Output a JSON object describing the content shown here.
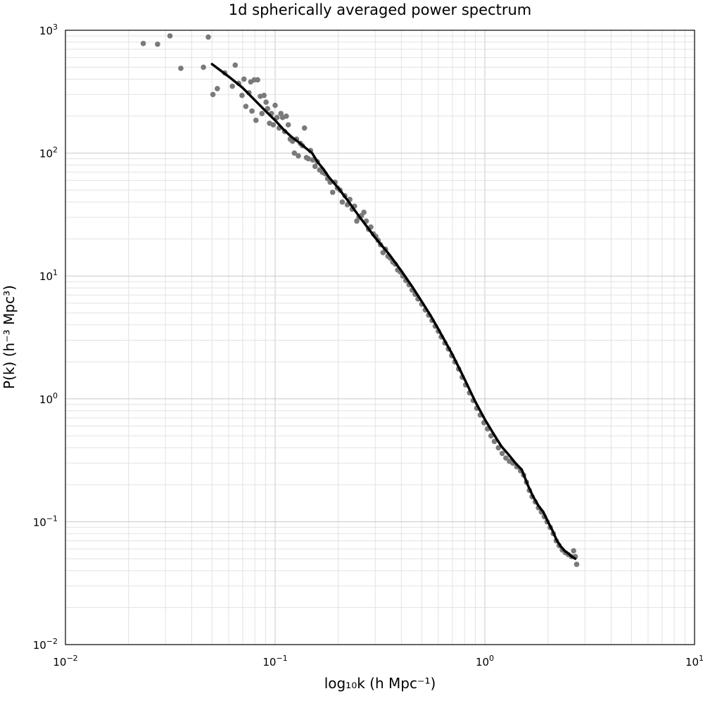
{
  "chart_data": {
    "type": "scatter",
    "title": "1d spherically averaged power spectrum",
    "xlabel": "log₁₀k (h Mpc⁻¹)",
    "ylabel": "P(k) (h⁻³ Mpc³)",
    "xscale": "log",
    "yscale": "log",
    "xlim": [
      0.01,
      10
    ],
    "ylim": [
      0.01,
      1000
    ],
    "grid": true,
    "x_ticks": [
      {
        "base": "10",
        "exp": "−2"
      },
      {
        "base": "10",
        "exp": "−1"
      },
      {
        "base": "10",
        "exp": "0"
      },
      {
        "base": "10",
        "exp": "1"
      }
    ],
    "y_ticks": [
      {
        "base": "10",
        "exp": "−2"
      },
      {
        "base": "10",
        "exp": "−1"
      },
      {
        "base": "10",
        "exp": "0"
      },
      {
        "base": "10",
        "exp": "1"
      },
      {
        "base": "10",
        "exp": "2"
      },
      {
        "base": "10",
        "exp": "3"
      }
    ],
    "series": [
      {
        "kind": "scatter",
        "color": "#7a7a7a",
        "points": [
          [
            0.0235,
            780
          ],
          [
            0.0275,
            770
          ],
          [
            0.0315,
            900
          ],
          [
            0.0355,
            490
          ],
          [
            0.0455,
            500
          ],
          [
            0.048,
            880
          ],
          [
            0.0505,
            300
          ],
          [
            0.053,
            335
          ],
          [
            0.0575,
            450
          ],
          [
            0.0625,
            350
          ],
          [
            0.0645,
            520
          ],
          [
            0.067,
            370
          ],
          [
            0.0695,
            295
          ],
          [
            0.071,
            400
          ],
          [
            0.0725,
            240
          ],
          [
            0.075,
            310
          ],
          [
            0.0765,
            380
          ],
          [
            0.0775,
            220
          ],
          [
            0.0795,
            395
          ],
          [
            0.081,
            185
          ],
          [
            0.0825,
            395
          ],
          [
            0.085,
            290
          ],
          [
            0.0865,
            210
          ],
          [
            0.0885,
            295
          ],
          [
            0.0905,
            260
          ],
          [
            0.092,
            230
          ],
          [
            0.094,
            175
          ],
          [
            0.096,
            210
          ],
          [
            0.098,
            170
          ],
          [
            0.1,
            245
          ],
          [
            0.102,
            195
          ],
          [
            0.1045,
            160
          ],
          [
            0.1065,
            210
          ],
          [
            0.1085,
            195
          ],
          [
            0.111,
            150
          ],
          [
            0.113,
            200
          ],
          [
            0.1155,
            170
          ],
          [
            0.118,
            130
          ],
          [
            0.121,
            125
          ],
          [
            0.1235,
            100
          ],
          [
            0.1265,
            130
          ],
          [
            0.129,
            95
          ],
          [
            0.132,
            120
          ],
          [
            0.135,
            115
          ],
          [
            0.138,
            160
          ],
          [
            0.141,
            92
          ],
          [
            0.144,
            90
          ],
          [
            0.1475,
            105
          ],
          [
            0.151,
            88
          ],
          [
            0.155,
            78
          ],
          [
            0.159,
            85
          ],
          [
            0.163,
            73
          ],
          [
            0.168,
            70
          ],
          [
            0.173,
            68
          ],
          [
            0.178,
            62
          ],
          [
            0.183,
            58
          ],
          [
            0.188,
            48
          ],
          [
            0.193,
            58
          ],
          [
            0.198,
            52
          ],
          [
            0.204,
            50
          ],
          [
            0.209,
            40
          ],
          [
            0.215,
            45
          ],
          [
            0.221,
            38
          ],
          [
            0.227,
            42
          ],
          [
            0.233,
            35
          ],
          [
            0.239,
            37
          ],
          [
            0.245,
            28
          ],
          [
            0.251,
            30
          ],
          [
            0.258,
            31
          ],
          [
            0.265,
            33
          ],
          [
            0.272,
            28
          ],
          [
            0.279,
            24
          ],
          [
            0.286,
            25
          ],
          [
            0.294,
            22
          ],
          [
            0.302,
            21
          ],
          [
            0.31,
            19.5
          ],
          [
            0.318,
            18
          ],
          [
            0.327,
            15.5
          ],
          [
            0.336,
            16.5
          ],
          [
            0.345,
            14.5
          ],
          [
            0.354,
            14
          ],
          [
            0.364,
            13
          ],
          [
            0.374,
            12.5
          ],
          [
            0.384,
            11.2
          ],
          [
            0.395,
            10.8
          ],
          [
            0.406,
            10
          ],
          [
            0.42,
            9.2
          ],
          [
            0.435,
            8.5
          ],
          [
            0.45,
            7.7
          ],
          [
            0.465,
            7.1
          ],
          [
            0.48,
            6.5
          ],
          [
            0.5,
            5.9
          ],
          [
            0.52,
            5.3
          ],
          [
            0.54,
            4.8
          ],
          [
            0.56,
            4.35
          ],
          [
            0.58,
            3.9
          ],
          [
            0.6,
            3.55
          ],
          [
            0.62,
            3.2
          ],
          [
            0.645,
            2.85
          ],
          [
            0.67,
            2.55
          ],
          [
            0.695,
            2.25
          ],
          [
            0.72,
            2.0
          ],
          [
            0.75,
            1.75
          ],
          [
            0.78,
            1.5
          ],
          [
            0.81,
            1.3
          ],
          [
            0.845,
            1.12
          ],
          [
            0.88,
            0.97
          ],
          [
            0.915,
            0.84
          ],
          [
            0.95,
            0.74
          ],
          [
            0.99,
            0.64
          ],
          [
            1.03,
            0.57
          ],
          [
            1.07,
            0.5
          ],
          [
            1.11,
            0.45
          ],
          [
            1.16,
            0.4
          ],
          [
            1.21,
            0.36
          ],
          [
            1.26,
            0.33
          ],
          [
            1.31,
            0.31
          ],
          [
            1.36,
            0.3
          ],
          [
            1.42,
            0.28
          ],
          [
            1.48,
            0.26
          ],
          [
            1.53,
            0.24
          ],
          [
            1.58,
            0.21
          ],
          [
            1.63,
            0.18
          ],
          [
            1.68,
            0.16
          ],
          [
            1.74,
            0.145
          ],
          [
            1.8,
            0.13
          ],
          [
            1.86,
            0.12
          ],
          [
            1.92,
            0.11
          ],
          [
            1.98,
            0.1
          ],
          [
            2.05,
            0.09
          ],
          [
            2.12,
            0.08
          ],
          [
            2.19,
            0.07
          ],
          [
            2.26,
            0.064
          ],
          [
            2.34,
            0.059
          ],
          [
            2.42,
            0.056
          ],
          [
            2.5,
            0.054
          ],
          [
            2.59,
            0.052
          ],
          [
            2.65,
            0.058
          ],
          [
            2.7,
            0.052
          ],
          [
            2.74,
            0.045
          ]
        ]
      },
      {
        "kind": "line",
        "color": "#000000",
        "points": [
          [
            0.05,
            530
          ],
          [
            0.06,
            420
          ],
          [
            0.07,
            340
          ],
          [
            0.08,
            270
          ],
          [
            0.09,
            220
          ],
          [
            0.1,
            185
          ],
          [
            0.11,
            155
          ],
          [
            0.12,
            135
          ],
          [
            0.13,
            122
          ],
          [
            0.14,
            110
          ],
          [
            0.15,
            100
          ],
          [
            0.16,
            84
          ],
          [
            0.17,
            74
          ],
          [
            0.18,
            64
          ],
          [
            0.2,
            52
          ],
          [
            0.22,
            42
          ],
          [
            0.25,
            31
          ],
          [
            0.28,
            24
          ],
          [
            0.3,
            20.5
          ],
          [
            0.35,
            15
          ],
          [
            0.4,
            11
          ],
          [
            0.45,
            8.2
          ],
          [
            0.5,
            6.2
          ],
          [
            0.55,
            4.8
          ],
          [
            0.6,
            3.7
          ],
          [
            0.7,
            2.3
          ],
          [
            0.8,
            1.45
          ],
          [
            0.9,
            0.95
          ],
          [
            1.0,
            0.68
          ],
          [
            1.1,
            0.52
          ],
          [
            1.2,
            0.41
          ],
          [
            1.3,
            0.35
          ],
          [
            1.4,
            0.3
          ],
          [
            1.5,
            0.265
          ],
          [
            1.6,
            0.2
          ],
          [
            1.7,
            0.16
          ],
          [
            1.8,
            0.135
          ],
          [
            1.9,
            0.12
          ],
          [
            2.0,
            0.1
          ],
          [
            2.1,
            0.085
          ],
          [
            2.2,
            0.071
          ],
          [
            2.3,
            0.063
          ],
          [
            2.4,
            0.058
          ],
          [
            2.5,
            0.055
          ],
          [
            2.6,
            0.052
          ],
          [
            2.7,
            0.05
          ]
        ]
      }
    ]
  }
}
